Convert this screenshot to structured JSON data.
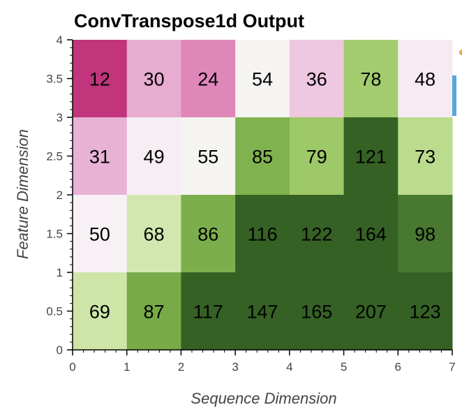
{
  "chart_data": {
    "type": "heatmap",
    "title": "ConvTranspose1d Output",
    "xlabel": "Sequence Dimension",
    "ylabel": "Feature Dimension",
    "xlim": [
      0,
      7
    ],
    "ylim": [
      0,
      4
    ],
    "x_ticks": [
      "0",
      "1",
      "2",
      "3",
      "4",
      "5",
      "6",
      "7"
    ],
    "y_ticks": [
      "0",
      "0.5",
      "1",
      "1.5",
      "2",
      "2.5",
      "3",
      "3.5",
      "4"
    ],
    "rows": [
      [
        12,
        30,
        24,
        54,
        36,
        78,
        48
      ],
      [
        31,
        49,
        55,
        85,
        79,
        121,
        73
      ],
      [
        50,
        68,
        86,
        116,
        122,
        164,
        98
      ],
      [
        69,
        87,
        117,
        147,
        165,
        207,
        123
      ]
    ],
    "row_order": "top-to-bottom",
    "colormap": {
      "name": "PiYG",
      "low": "#c0357c",
      "mid": "#f7f7f7",
      "high": "#356125"
    },
    "grid": false
  }
}
